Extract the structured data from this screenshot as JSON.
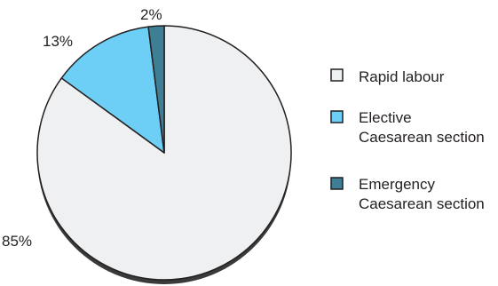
{
  "chart_data": {
    "type": "pie",
    "title": "",
    "slices": [
      {
        "label": "Rapid labour",
        "legend_lines": [
          "Rapid labour"
        ],
        "value": 85,
        "display": "85%",
        "color": "#eef0f2"
      },
      {
        "label": "Elective Caesarean section",
        "legend_lines": [
          "Elective",
          "Caesarean section"
        ],
        "value": 13,
        "display": "13%",
        "color": "#6dcff6"
      },
      {
        "label": "Emergency Caesarean section",
        "legend_lines": [
          "Emergency",
          "Caesarean section"
        ],
        "value": 2,
        "display": "2%",
        "color": "#3f7f95"
      }
    ],
    "start": "12 o'clock",
    "direction": "counter-clockwise from top for small slices",
    "legend_position": "right"
  },
  "colors": {
    "outline": "#231f20",
    "shadow": "#3a3a3a",
    "background": "#ffffff"
  }
}
